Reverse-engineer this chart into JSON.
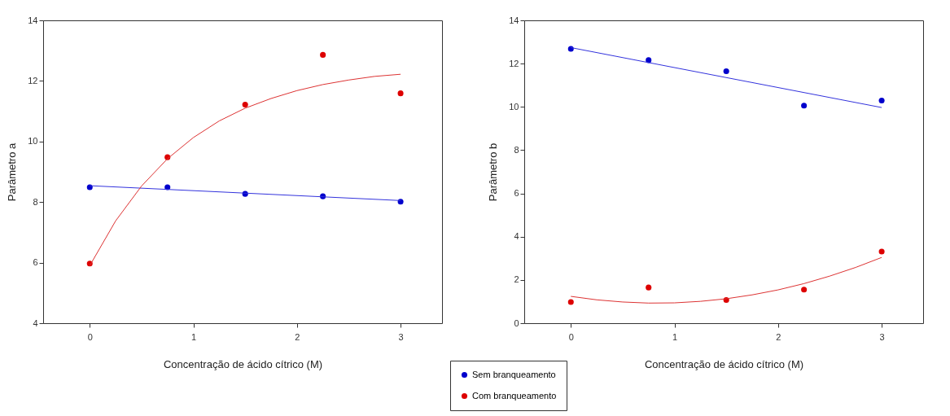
{
  "chart_data": [
    {
      "type": "scatter",
      "xlabel": "Concentração de ácido cítrico (M)",
      "ylabel": "Parâmetro a",
      "xlim": [
        -0.45,
        3.4
      ],
      "ylim": [
        4,
        14
      ],
      "xticks": [
        0,
        1,
        2,
        3
      ],
      "yticks": [
        4,
        6,
        8,
        10,
        12,
        14
      ],
      "legend": "bottom",
      "marker": "circle",
      "line_style": "solid",
      "x": [
        0,
        0.75,
        1.5,
        2.25,
        3
      ],
      "series": [
        {
          "name": "Sem branqueamento",
          "color": "#0000cc",
          "values": [
            8.49,
            8.49,
            8.27,
            8.19,
            8.01
          ]
        },
        {
          "name": "Com branqueamento",
          "color": "#dd0000",
          "values": [
            5.97,
            9.48,
            11.22,
            12.86,
            11.59
          ]
        },
        {
          "type": "line",
          "marker": "none",
          "color": "#3333dd",
          "x": [
            0,
            3
          ],
          "values": [
            8.54,
            8.05
          ]
        },
        {
          "type": "line",
          "marker": "none",
          "color": "#dd3333",
          "x": [
            0,
            0.25,
            0.5,
            0.75,
            1,
            1.25,
            1.5,
            1.75,
            2,
            2.25,
            2.5,
            2.75,
            3
          ],
          "values": [
            5.9,
            7.38,
            8.53,
            9.43,
            10.13,
            10.68,
            11.1,
            11.42,
            11.68,
            11.88,
            12.03,
            12.15,
            12.22
          ]
        }
      ]
    },
    {
      "type": "scatter",
      "xlabel": "Concentração de ácido cítrico (M)",
      "ylabel": "Parâmetro b",
      "xlim": [
        -0.45,
        3.4
      ],
      "ylim": [
        0,
        14
      ],
      "xticks": [
        0,
        1,
        2,
        3
      ],
      "yticks": [
        0,
        2,
        4,
        6,
        8,
        10,
        12,
        14
      ],
      "legend": "bottom",
      "marker": "circle",
      "line_style": "solid",
      "x": [
        0,
        0.75,
        1.5,
        2.25,
        3
      ],
      "series": [
        {
          "name": "Sem branqueamento",
          "color": "#0000cc",
          "values": [
            12.68,
            12.16,
            11.65,
            10.06,
            10.29
          ]
        },
        {
          "name": "Com branqueamento",
          "color": "#dd0000",
          "values": [
            0.98,
            1.65,
            1.07,
            1.55,
            3.31
          ]
        },
        {
          "type": "line",
          "marker": "none",
          "color": "#3333dd",
          "x": [
            0,
            3
          ],
          "values": [
            12.74,
            9.97
          ]
        },
        {
          "type": "line",
          "marker": "none",
          "color": "#dd3333",
          "x": [
            0,
            0.25,
            0.5,
            0.75,
            1,
            1.25,
            1.5,
            1.75,
            2,
            2.25,
            2.5,
            2.75,
            3
          ],
          "values": [
            1.24,
            1.08,
            0.98,
            0.93,
            0.94,
            1.01,
            1.13,
            1.31,
            1.54,
            1.83,
            2.18,
            2.58,
            3.04
          ]
        }
      ]
    }
  ]
}
